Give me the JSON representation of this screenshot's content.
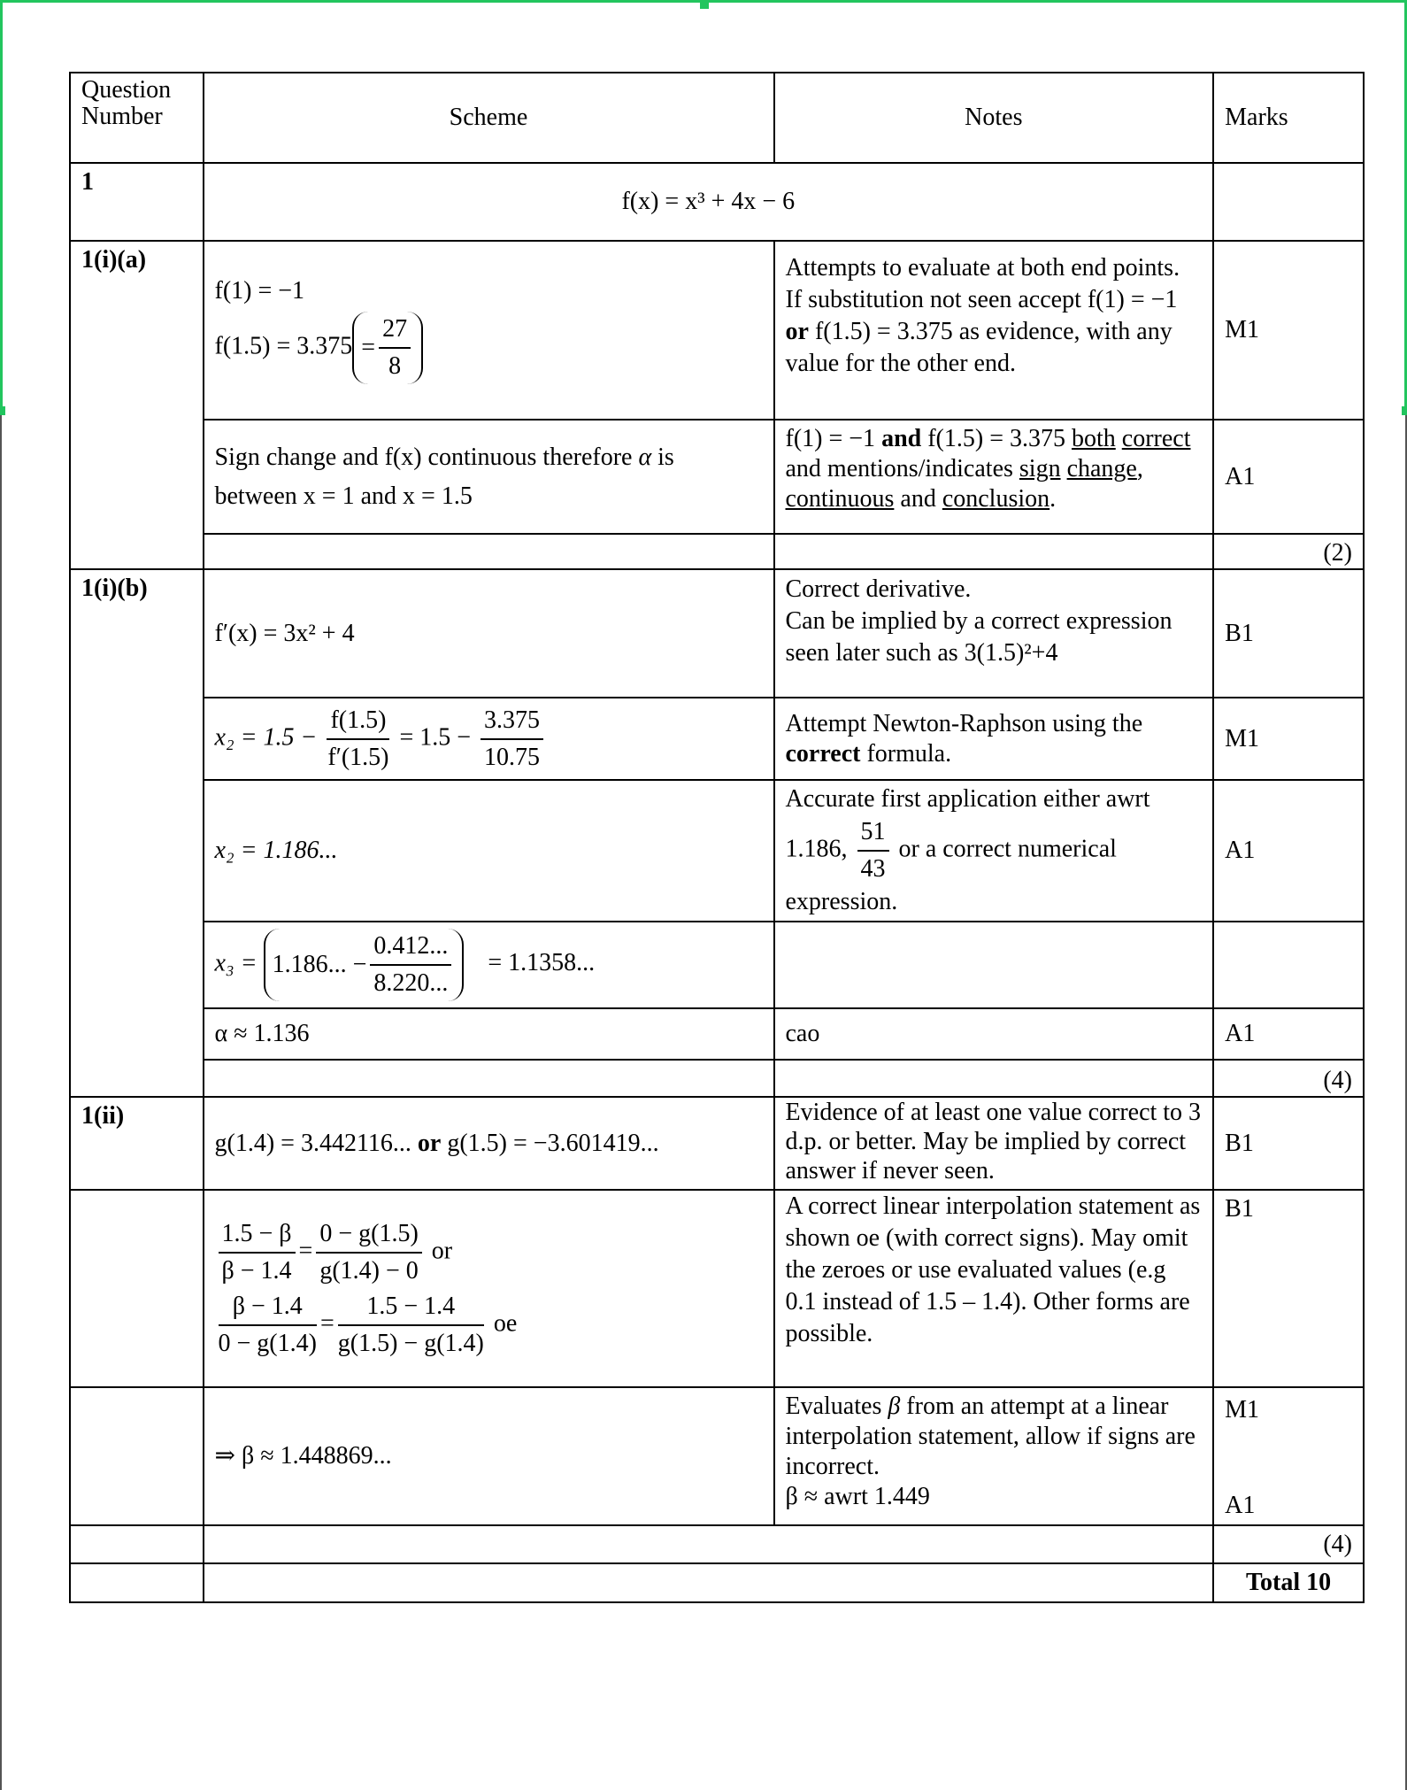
{
  "header": {
    "question_number": "Question Number",
    "scheme": "Scheme",
    "notes": "Notes",
    "marks": "Marks"
  },
  "q1": {
    "label": "1",
    "function": "f(x) = x³ + 4x − 6"
  },
  "a": {
    "label": "1(i)(a)",
    "row1": {
      "line1": "f(1) = −1",
      "line2": "f(1.5) = 3.375",
      "eq": "=",
      "frac_num": "27",
      "frac_den": "8",
      "notes_1": "Attempts to evaluate at both end points. If substitution not seen accept",
      "notes_f1": "f(1) = −1",
      "notes_or": "or",
      "notes_f2": "f(1.5) = 3.375",
      "notes_as": "as",
      "notes_2": "evidence, with any value for the other end.",
      "mark": "M1"
    },
    "row2": {
      "scheme_1": "Sign change and f(x) continuous therefore",
      "alpha": "α",
      "scheme_2": "is between",
      "x1": "x = 1",
      "and": "and",
      "x2": "x = 1.5",
      "notes_f1": "f(1) = −1",
      "notes_and": "and",
      "notes_f2": "f(1.5) = 3.375",
      "notes_both": "both",
      "notes_correct": "correct",
      "notes_mid": "and mentions/indicates",
      "notes_sign": "sign",
      "notes_change": "change",
      "notes_comma": ",",
      "notes_continuous": "continuous",
      "notes_and2": "and",
      "notes_conclusion": "conclusion",
      "notes_end": ".",
      "mark": "A1"
    },
    "total": "(2)"
  },
  "b": {
    "label": "1(i)(b)",
    "row1": {
      "scheme": "f′(x) = 3x² + 4",
      "notes_1": "Correct derivative.",
      "notes_2": "Can be implied by a correct expression seen later such as",
      "notes_expr": "3(1.5)²+4",
      "mark": "B1"
    },
    "row2": {
      "lhs": "x₂ = 1.5 −",
      "f_num": "f(1.5)",
      "f_den": "f′(1.5)",
      "mid": "= 1.5 −",
      "n_num": "3.375",
      "n_den": "10.75",
      "notes_1": "Attempt Newton-Raphson using the",
      "notes_bold": "correct",
      "notes_2": "formula.",
      "mark": "M1"
    },
    "row3": {
      "scheme": "x₂ = 1.186...",
      "notes_1": "Accurate first application either awrt",
      "notes_val": "1.186,",
      "frac_num": "51",
      "frac_den": "43",
      "notes_2": "or a correct numerical expression.",
      "mark": "A1"
    },
    "row4": {
      "lhs": "x₃ =",
      "a": "1.186... −",
      "num": "0.412...",
      "den": "8.220...",
      "rhs": "= 1.1358..."
    },
    "row5": {
      "scheme": "α ≈ 1.136",
      "notes": "cao",
      "mark": "A1"
    },
    "total": "(4)"
  },
  "c": {
    "label": "1(ii)",
    "row1": {
      "s1": "g(1.4) = 3.442116...",
      "or": "or",
      "s2": "g(1.5) = −3.601419...",
      "notes": "Evidence of at least one value correct to 3 d.p. or better. May be implied by correct answer if never seen.",
      "mark": "B1"
    },
    "row2": {
      "f1_num": "1.5 − β",
      "f1_den": "β − 1.4",
      "eq": "=",
      "f2_num": "0 − g(1.5)",
      "f2_den": "g(1.4) − 0",
      "or": "or",
      "f3_num": "β − 1.4",
      "f3_den": "0 − g(1.4)",
      "f4_num": "1.5 − 1.4",
      "f4_den": "g(1.5) − g(1.4)",
      "oe": "oe",
      "notes": "A correct linear interpolation statement as shown oe (with correct signs). May omit the zeroes or use evaluated values (e.g 0.1 instead of 1.5 – 1.4). Other forms are possible.",
      "mark": "B1"
    },
    "row3": {
      "scheme": "⇒ β ≈ 1.448869...",
      "notes_1": "Evaluates",
      "beta": "β",
      "notes_2": "from an attempt at a linear interpolation statement, allow if signs are incorrect.",
      "notes_3": "β ≈ awrt 1.449",
      "mark1": "M1",
      "mark2": "A1"
    },
    "total": "(4)"
  },
  "grand_total": "Total 10"
}
